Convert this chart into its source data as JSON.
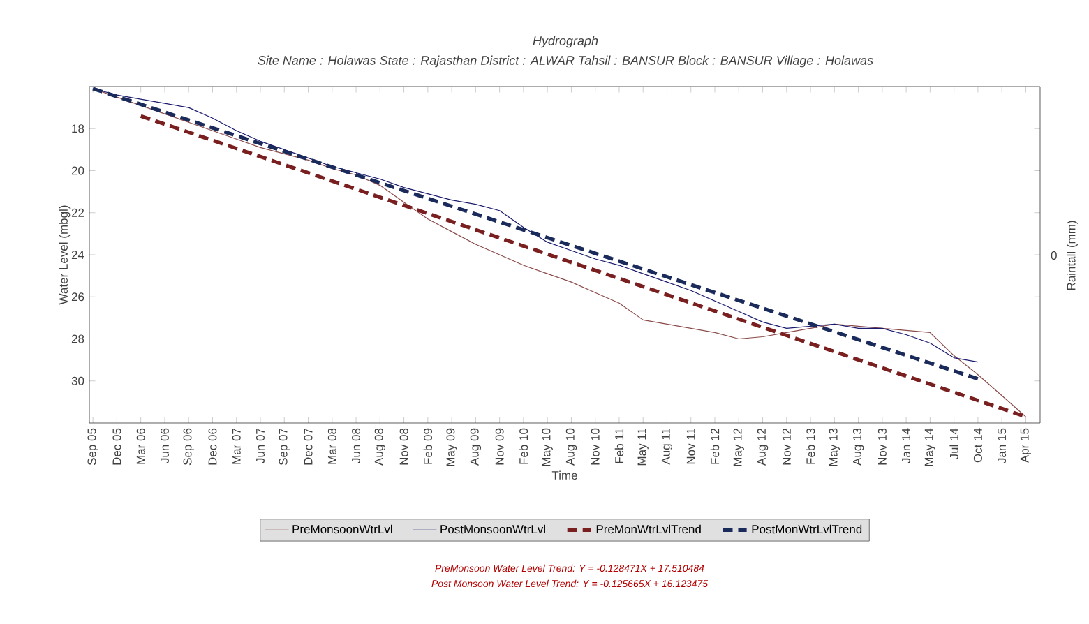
{
  "chart_data": {
    "type": "line",
    "title": "Hydrograph",
    "subtitle": "Site Name : Holawas  State : Rajasthan District : ALWAR  Tahsil : BANSUR  Block : BANSUR Village : Holawas",
    "xlabel": "Time",
    "ylabel": "Water Level (mbgl)",
    "categories": [
      "Sep 05",
      "Dec 05",
      "Mar 06",
      "Jun 06",
      "Sep 06",
      "Dec 06",
      "Mar 07",
      "Jun 07",
      "Sep 07",
      "Dec 07",
      "Mar 08",
      "Jun 08",
      "Aug 08",
      "Nov 08",
      "Feb 09",
      "May 09",
      "Aug 09",
      "Nov 09",
      "Feb 10",
      "May 10",
      "Aug 10",
      "Nov 10",
      "Feb 11",
      "May 11",
      "Aug 11",
      "Nov 11",
      "Feb 12",
      "May 12",
      "Aug 12",
      "Nov 12",
      "Feb 13",
      "May 13",
      "Aug 13",
      "Nov 13",
      "Jan 14",
      "May 14",
      "Jul 14",
      "Oct 14",
      "Jan 15",
      "Apr 15"
    ],
    "series": [
      {
        "name": "PreMonsoonWtrLvl",
        "color": "#8b4a4a",
        "line_style": "solid",
        "values": [
          16.1,
          16.5,
          16.9,
          17.3,
          17.7,
          18.1,
          18.5,
          18.9,
          19.2,
          19.5,
          19.9,
          20.2,
          20.7,
          21.5,
          22.3,
          22.9,
          23.5,
          24.0,
          24.5,
          24.9,
          25.3,
          25.8,
          26.3,
          27.1,
          27.3,
          27.5,
          27.7,
          28.0,
          27.9,
          27.7,
          27.5,
          27.3,
          27.4,
          27.5,
          27.6,
          27.7,
          28.8,
          29.7,
          30.7,
          31.7
        ]
      },
      {
        "name": "PostMonsoonWtrLvl",
        "color": "#1a1a6e",
        "line_style": "solid",
        "values": [
          16.1,
          16.4,
          16.6,
          16.8,
          17.0,
          17.5,
          18.1,
          18.6,
          19.0,
          19.4,
          19.8,
          20.1,
          20.4,
          20.8,
          21.1,
          21.4,
          21.6,
          21.9,
          22.7,
          23.4,
          23.8,
          24.2,
          24.5,
          24.9,
          25.3,
          25.7,
          26.2,
          26.7,
          27.2,
          27.5,
          27.4,
          27.3,
          27.5,
          27.5,
          27.8,
          28.2,
          28.9,
          29.1,
          null,
          null
        ]
      },
      {
        "name": "PreMonWtrLvlTrend",
        "color": "#7a1f1f",
        "line_style": "dashed",
        "values": [
          null,
          null,
          17.4,
          null,
          null,
          null,
          null,
          null,
          null,
          null,
          null,
          null,
          null,
          null,
          null,
          null,
          null,
          null,
          null,
          null,
          null,
          null,
          null,
          null,
          null,
          null,
          null,
          null,
          null,
          null,
          null,
          null,
          null,
          null,
          null,
          null,
          null,
          null,
          null,
          31.7
        ]
      },
      {
        "name": "PostMonWtrLvlTrend",
        "color": "#1a2a5a",
        "line_style": "dashed",
        "values": [
          16.1,
          null,
          null,
          null,
          null,
          null,
          null,
          null,
          null,
          null,
          null,
          null,
          null,
          null,
          null,
          null,
          null,
          null,
          null,
          null,
          null,
          null,
          null,
          null,
          null,
          null,
          null,
          null,
          null,
          null,
          null,
          null,
          null,
          null,
          null,
          null,
          null,
          29.9,
          null,
          null
        ]
      }
    ],
    "ylim": [
      32,
      16
    ],
    "yticks": [
      18,
      20,
      22,
      24,
      26,
      28,
      30
    ],
    "legend": "bottom",
    "grid": false,
    "marker": "none",
    "annotations": [
      "0",
      "Raintall (mm)",
      "PreMonsoon Water Level Trend: Y = -0.128471X + 17.510484",
      "Post Monsoon Water Level Trend: Y = -0.125665X + 16.123475"
    ]
  }
}
